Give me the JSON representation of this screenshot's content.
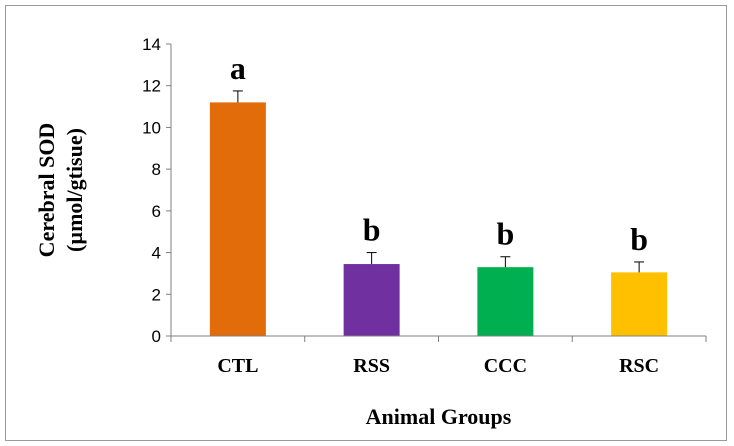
{
  "chart_data": {
    "type": "bar",
    "title": "",
    "xlabel": "Animal Groups",
    "ylabel_line1": "Cerebral SOD",
    "ylabel_line2": "(µmol/gtisue)",
    "ylim": [
      0,
      14
    ],
    "yticks": [
      0,
      2,
      4,
      6,
      8,
      10,
      12,
      14
    ],
    "grid": false,
    "legend": "none",
    "categories": [
      "CTL",
      "RSS",
      "CCC",
      "RSC"
    ],
    "values": [
      11.2,
      3.45,
      3.3,
      3.05
    ],
    "errors": [
      0.55,
      0.55,
      0.5,
      0.5
    ],
    "significance": [
      "a",
      "b",
      "b",
      "b"
    ],
    "colors": [
      "#E36C0A",
      "#7030A0",
      "#00B050",
      "#FFC000"
    ]
  }
}
